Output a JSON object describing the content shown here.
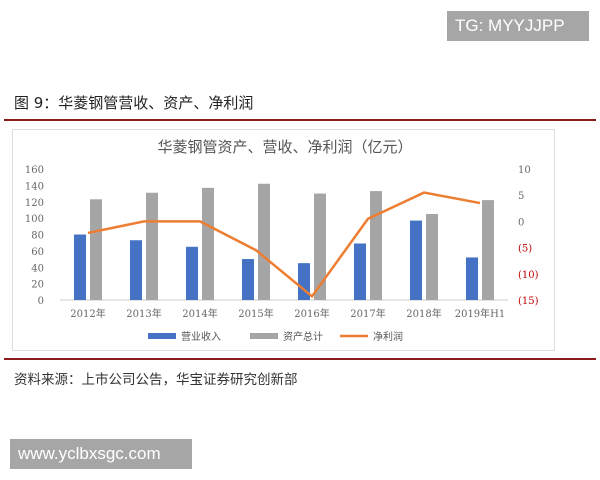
{
  "watermark_top": "TG: MYYJJPP",
  "watermark_bottom": "www.yclbxsgc.com",
  "figure_title": "图 9：华菱钢管营收、资产、净利润",
  "source": "资料来源：上市公司公告，华宝证券研究创新部",
  "colors": {
    "revenue": "#4472c4",
    "assets": "#a5a5a5",
    "profit": "#ed7d31",
    "negative_tick": "#c00000",
    "rule": "#8b1a1a"
  },
  "chart_data": {
    "type": "bar",
    "title": "华菱钢管资产、营收、净利润（亿元）",
    "categories": [
      "2012年",
      "2013年",
      "2014年",
      "2015年",
      "2016年",
      "2017年",
      "2018年",
      "2019年H1"
    ],
    "series": [
      {
        "name": "营业收入",
        "type": "bar",
        "axis": "left",
        "values": [
          80,
          73,
          65,
          50,
          45,
          69,
          97,
          52
        ]
      },
      {
        "name": "资产总计",
        "type": "bar",
        "axis": "left",
        "values": [
          123,
          131,
          137,
          142,
          130,
          133,
          105,
          122
        ]
      },
      {
        "name": "净利润",
        "type": "line",
        "axis": "right",
        "values": [
          -2.2,
          0,
          0,
          -5.5,
          -14.3,
          0.5,
          5.5,
          3.5
        ]
      }
    ],
    "left_axis": {
      "ylim": [
        0,
        160
      ],
      "ticks": [
        "0",
        "20",
        "40",
        "60",
        "80",
        "100",
        "120",
        "140",
        "160"
      ]
    },
    "right_axis": {
      "ylim": [
        -15,
        10
      ],
      "ticks": [
        "(15)",
        "(10)",
        "(5)",
        "0",
        "5",
        "10"
      ]
    },
    "legend_position": "bottom",
    "grid": false
  }
}
